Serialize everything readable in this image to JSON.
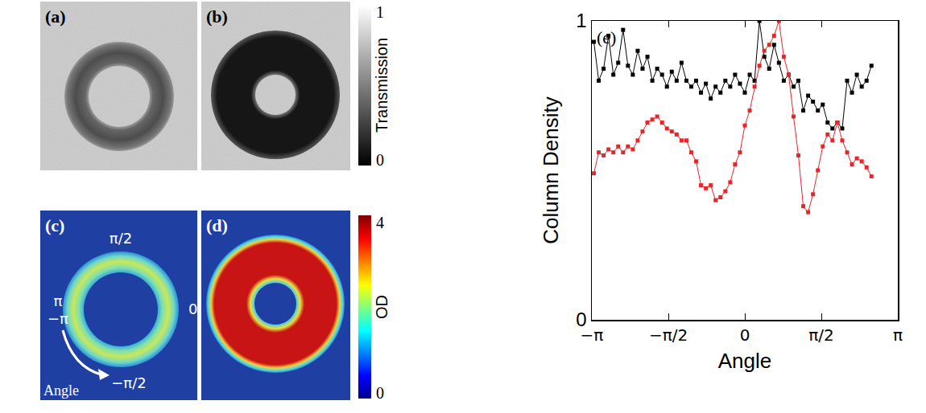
{
  "panels": [
    {
      "label": "(a)",
      "colorbar": 0
    },
    {
      "label": "(b)",
      "colorbar": 0
    },
    {
      "label": "(c)",
      "colorbar": 1,
      "angle_labels": {
        "top": "π/2",
        "right": "0",
        "left_upper": "π",
        "left_lower": "−π",
        "bottom": "−π/2"
      },
      "angle_caption": "Angle"
    },
    {
      "label": "(d)",
      "colorbar": 1
    }
  ],
  "colorbars": [
    {
      "title": "Transmission",
      "range": [
        0,
        1
      ],
      "ticks": [
        0,
        1
      ]
    },
    {
      "title": "OD",
      "range": [
        0,
        4
      ],
      "ticks": [
        0,
        4
      ]
    }
  ],
  "chart_data": {
    "type": "line",
    "annotations": [
      "(e)"
    ],
    "x_label": "Angle",
    "y_label": "Column Density",
    "x": [
      -3.1,
      -3.0,
      -2.9,
      -2.8,
      -2.7,
      -2.6,
      -2.5,
      -2.4,
      -2.3,
      -2.2,
      -2.1,
      -2.0,
      -1.9,
      -1.8,
      -1.7,
      -1.6,
      -1.5,
      -1.4,
      -1.3,
      -1.2,
      -1.1,
      -1.0,
      -0.9,
      -0.8,
      -0.7,
      -0.6,
      -0.5,
      -0.4,
      -0.3,
      -0.2,
      -0.1,
      0.0,
      0.1,
      0.2,
      0.3,
      0.4,
      0.5,
      0.6,
      0.7,
      0.8,
      0.9,
      1.0,
      1.1,
      1.2,
      1.3,
      1.4,
      1.5,
      1.6,
      1.7,
      1.8,
      1.9,
      2.0,
      2.1,
      2.2,
      2.3,
      2.4,
      2.5,
      2.6
    ],
    "series": [
      {
        "color": "#000000",
        "marker": "square",
        "values": [
          0.93,
          0.8,
          0.84,
          0.95,
          0.82,
          0.86,
          0.97,
          0.85,
          0.82,
          0.9,
          0.84,
          0.88,
          0.8,
          0.84,
          0.82,
          0.78,
          0.83,
          0.8,
          0.86,
          0.8,
          0.78,
          0.8,
          0.76,
          0.79,
          0.74,
          0.78,
          0.76,
          0.8,
          0.78,
          0.82,
          0.79,
          0.76,
          0.82,
          0.8,
          1.0,
          0.88,
          0.84,
          0.92,
          0.86,
          0.8,
          0.82,
          0.78,
          0.8,
          0.7,
          0.75,
          0.73,
          0.7,
          0.72,
          0.66,
          0.64,
          0.66,
          0.64,
          0.8,
          0.76,
          0.82,
          0.78,
          0.8,
          0.85
        ]
      },
      {
        "color": "#e8262a",
        "marker": "square",
        "values": [
          0.49,
          0.56,
          0.55,
          0.57,
          0.56,
          0.58,
          0.56,
          0.58,
          0.57,
          0.6,
          0.63,
          0.66,
          0.67,
          0.68,
          0.66,
          0.64,
          0.63,
          0.62,
          0.6,
          0.6,
          0.56,
          0.53,
          0.45,
          0.44,
          0.45,
          0.4,
          0.41,
          0.43,
          0.46,
          0.52,
          0.56,
          0.65,
          0.7,
          0.78,
          0.85,
          0.9,
          0.92,
          0.95,
          1.0,
          0.88,
          0.82,
          0.68,
          0.55,
          0.38,
          0.36,
          0.42,
          0.5,
          0.58,
          0.62,
          0.6,
          0.66,
          0.6,
          0.56,
          0.52,
          0.54,
          0.53,
          0.51,
          0.48
        ]
      }
    ],
    "xlim": [
      -3.14159,
      3.14159
    ],
    "xticks": [
      {
        "value": -3.14159,
        "label": "−π"
      },
      {
        "value": -1.5708,
        "label": "−π/2"
      },
      0,
      {
        "value": 1.5708,
        "label": "π/2"
      },
      {
        "value": 3.14159,
        "label": "π"
      }
    ],
    "ylim": [
      0,
      1
    ],
    "yticks": [
      0,
      1
    ],
    "grid": false
  }
}
